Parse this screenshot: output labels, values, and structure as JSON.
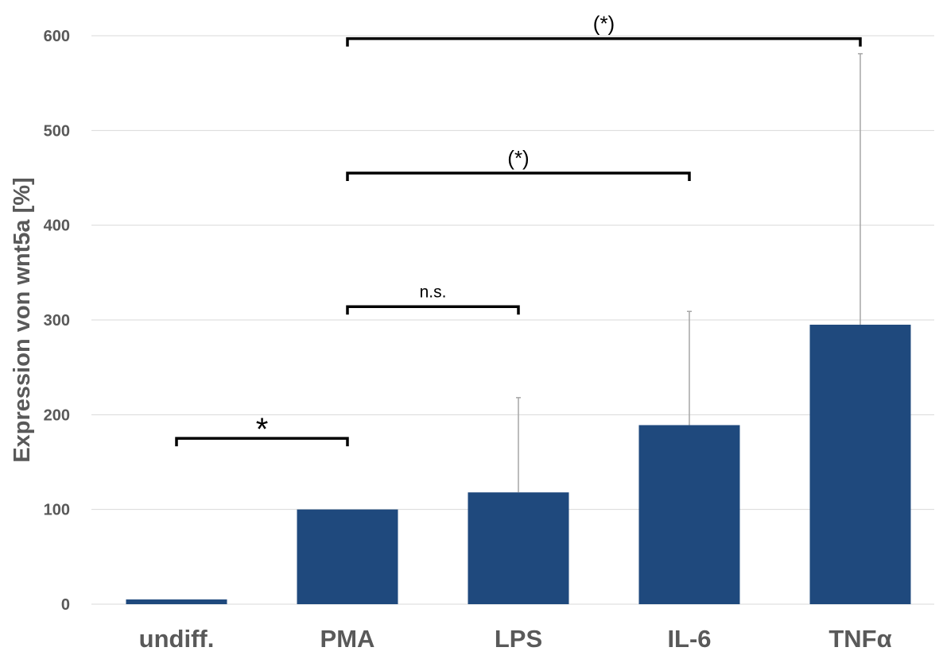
{
  "chart_data": {
    "type": "bar",
    "title": "",
    "xlabel": "",
    "ylabel": "Expression von wnt5a [%]",
    "categories": [
      "undiff.",
      "PMA",
      "LPS",
      "IL-6",
      "TNFα"
    ],
    "values": [
      5,
      100,
      118,
      189,
      295
    ],
    "error_upper": [
      0,
      0,
      100,
      120,
      286
    ],
    "ylim": [
      0,
      600
    ],
    "yticks": [
      0,
      100,
      200,
      300,
      400,
      500,
      600
    ],
    "ytick_labels": [
      "0",
      "100",
      "200",
      "300",
      "400",
      "500",
      "600"
    ],
    "grid": true,
    "legend": "none",
    "bar_color": "#1f497d",
    "error_bar_color": "#a6a6a6",
    "gridline_color": "#d9d9d9",
    "significance": [
      {
        "from": "undiff.",
        "to": "PMA",
        "label": "*",
        "y": 175
      },
      {
        "from": "PMA",
        "to": "LPS",
        "label": "n.s.",
        "y": 314
      },
      {
        "from": "PMA",
        "to": "IL-6",
        "label": "(*)",
        "y": 455
      },
      {
        "from": "PMA",
        "to": "TNFα",
        "label": "(*)",
        "y": 597
      }
    ]
  }
}
